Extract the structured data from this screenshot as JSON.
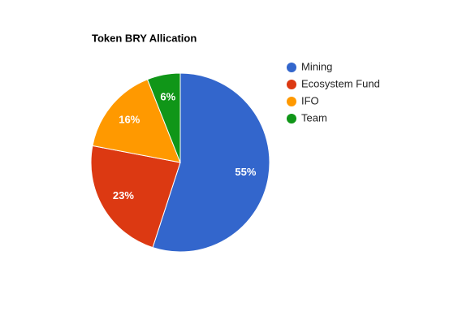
{
  "chart_data": {
    "type": "pie",
    "title": "Token BRY Allication",
    "categories": [
      "Mining",
      "Ecosystem Fund",
      "IFO",
      "Team"
    ],
    "values": [
      55,
      23,
      16,
      6
    ],
    "value_labels": [
      "55%",
      "23%",
      "16%",
      "6%"
    ],
    "colors": [
      "#3366cc",
      "#dc3912",
      "#ff9900",
      "#109618"
    ],
    "legend": "right"
  }
}
